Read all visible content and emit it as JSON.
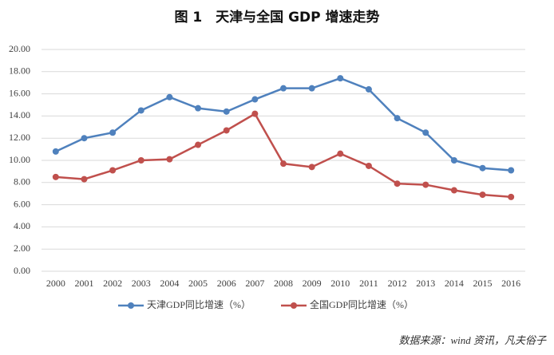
{
  "chart_data": {
    "type": "line",
    "title": "图 1　天津与全国 GDP 增速走势",
    "categories": [
      "2000",
      "2001",
      "2002",
      "2003",
      "2004",
      "2005",
      "2006",
      "2007",
      "2008",
      "2009",
      "2010",
      "2011",
      "2012",
      "2013",
      "2014",
      "2015",
      "2016"
    ],
    "series": [
      {
        "name": "天津GDP同比增速（%）",
        "color": "#4f81bd",
        "values": [
          10.8,
          12.0,
          12.5,
          14.5,
          15.7,
          14.7,
          14.4,
          15.5,
          16.5,
          16.5,
          17.4,
          16.4,
          13.8,
          12.5,
          10.0,
          9.3,
          9.1
        ]
      },
      {
        "name": "全国GDP同比增速（%）",
        "color": "#c0504d",
        "values": [
          8.5,
          8.3,
          9.1,
          10.0,
          10.1,
          11.4,
          12.7,
          14.2,
          9.7,
          9.4,
          10.6,
          9.5,
          7.9,
          7.8,
          7.3,
          6.9,
          6.7
        ]
      }
    ],
    "ylim": [
      0,
      20
    ],
    "yticks": [
      {
        "value": 0,
        "label": "0.00"
      },
      {
        "value": 2,
        "label": "2.00"
      },
      {
        "value": 4,
        "label": "4.00"
      },
      {
        "value": 6,
        "label": "6.00"
      },
      {
        "value": 8,
        "label": "8.00"
      },
      {
        "value": 10,
        "label": "10.00"
      },
      {
        "value": 12,
        "label": "12.00"
      },
      {
        "value": 14,
        "label": "14.00"
      },
      {
        "value": 16,
        "label": "16.00"
      },
      {
        "value": 18,
        "label": "18.00"
      },
      {
        "value": 20,
        "label": "20.00"
      }
    ],
    "grid": true,
    "legend": "bottom",
    "source": "数据来源：wind 资讯，凡夫俗子"
  }
}
